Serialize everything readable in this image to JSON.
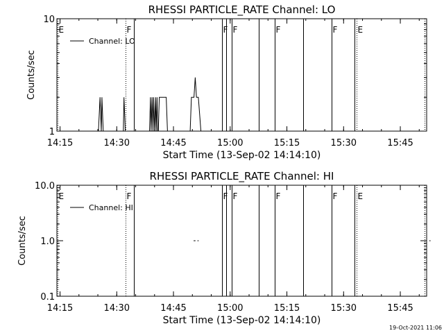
{
  "timestamp": "19-Oct-2021 11:06",
  "chart_data": [
    {
      "type": "line",
      "title": "RHESSI PARTICLE_RATE Channel: LO",
      "xlabel": "Start Time (13-Sep-02 14:14:10)",
      "ylabel": "Counts/sec",
      "yscale": "log",
      "ylim": [
        1,
        10
      ],
      "xlim_minutes_after_1414_10": [
        0,
        97.8
      ],
      "x_ticks": [
        "14:15",
        "14:30",
        "14:45",
        "15:00",
        "15:15",
        "15:30",
        "15:45"
      ],
      "y_ticks": [
        "1",
        "10"
      ],
      "legend": "Channel: LO",
      "legend_position": "top-left",
      "series": [
        {
          "name": "Channel: LO",
          "x": [
            "14:25:10",
            "14:25:35",
            "14:25:55",
            "14:26:05",
            "14:26:25",
            "14:26:40",
            "14:31:45",
            "14:31:55",
            "14:32:15",
            "14:38:40",
            "14:38:55",
            "14:39:05",
            "14:39:20",
            "14:39:35",
            "14:39:45",
            "14:40:00",
            "14:40:15",
            "14:40:25",
            "14:40:40",
            "14:40:50",
            "14:41:00",
            "14:41:15",
            "14:41:40",
            "14:43:05",
            "14:43:25",
            "14:49:25",
            "14:49:45",
            "14:50:05",
            "14:50:25",
            "14:50:45",
            "14:51:05",
            "14:51:20",
            "14:51:35",
            "14:52:15",
            "14:52:55"
          ],
          "values": [
            1,
            2,
            1,
            2,
            1,
            1,
            1,
            2,
            1,
            1,
            2,
            1,
            2,
            1,
            2,
            1,
            2,
            1,
            2,
            1,
            1,
            2,
            2,
            2,
            1,
            1,
            2,
            2,
            2,
            3,
            2,
            2,
            2,
            1,
            1
          ]
        }
      ],
      "markers": [
        {
          "label": "E",
          "time": "14:14:20",
          "style": "dotted"
        },
        {
          "label": "F",
          "time": "14:32:20",
          "style": "dotted"
        },
        {
          "label": "",
          "time": "14:34:30",
          "style": "solid"
        },
        {
          "label": "F",
          "time": "14:57:45",
          "style": "solid"
        },
        {
          "label": "",
          "time": "14:59:00",
          "style": "solid"
        },
        {
          "label": "F",
          "time": "15:00:20",
          "style": "solid"
        },
        {
          "label": "",
          "time": "15:07:30",
          "style": "solid"
        },
        {
          "label": "F",
          "time": "15:11:50",
          "style": "solid"
        },
        {
          "label": "",
          "time": "15:19:20",
          "style": "solid"
        },
        {
          "label": "F",
          "time": "15:26:50",
          "style": "solid"
        },
        {
          "label": "",
          "time": "15:32:50",
          "style": "solid"
        },
        {
          "label": "E",
          "time": "15:33:30",
          "style": "dotted"
        },
        {
          "label": "",
          "time": "15:51:30",
          "style": "dotted"
        }
      ]
    },
    {
      "type": "line",
      "title": "RHESSI PARTICLE_RATE Channel: HI",
      "xlabel": "Start Time (13-Sep-02 14:14:10)",
      "ylabel": "Counts/sec",
      "yscale": "log",
      "ylim": [
        0.1,
        10
      ],
      "xlim_minutes_after_1414_10": [
        0,
        97.8
      ],
      "x_ticks": [
        "14:15",
        "14:30",
        "14:45",
        "15:00",
        "15:15",
        "15:30",
        "15:45"
      ],
      "y_ticks": [
        "0.1",
        "1.0",
        "10.0"
      ],
      "legend": "Channel: HI",
      "legend_position": "top-left",
      "series": [
        {
          "name": "Channel: HI",
          "segments": [
            {
              "x": [
                "14:50:20",
                "14:50:50"
              ],
              "values": [
                1,
                1
              ]
            },
            {
              "x": [
                "14:51:20",
                "14:51:40"
              ],
              "values": [
                1,
                1
              ]
            },
            {
              "x": [
                "15:52:40",
                "15:53:00"
              ],
              "values": [
                1,
                1
              ]
            }
          ]
        }
      ],
      "markers": [
        {
          "label": "E",
          "time": "14:14:20",
          "style": "dotted"
        },
        {
          "label": "F",
          "time": "14:32:20",
          "style": "dotted"
        },
        {
          "label": "",
          "time": "14:34:30",
          "style": "solid"
        },
        {
          "label": "F",
          "time": "14:57:45",
          "style": "solid"
        },
        {
          "label": "",
          "time": "14:59:00",
          "style": "solid"
        },
        {
          "label": "F",
          "time": "15:00:20",
          "style": "solid"
        },
        {
          "label": "",
          "time": "15:07:30",
          "style": "solid"
        },
        {
          "label": "F",
          "time": "15:11:50",
          "style": "solid"
        },
        {
          "label": "",
          "time": "15:19:20",
          "style": "solid"
        },
        {
          "label": "F",
          "time": "15:26:50",
          "style": "solid"
        },
        {
          "label": "",
          "time": "15:32:50",
          "style": "solid"
        },
        {
          "label": "E",
          "time": "15:33:30",
          "style": "dotted"
        },
        {
          "label": "",
          "time": "15:51:30",
          "style": "dotted"
        }
      ]
    }
  ]
}
